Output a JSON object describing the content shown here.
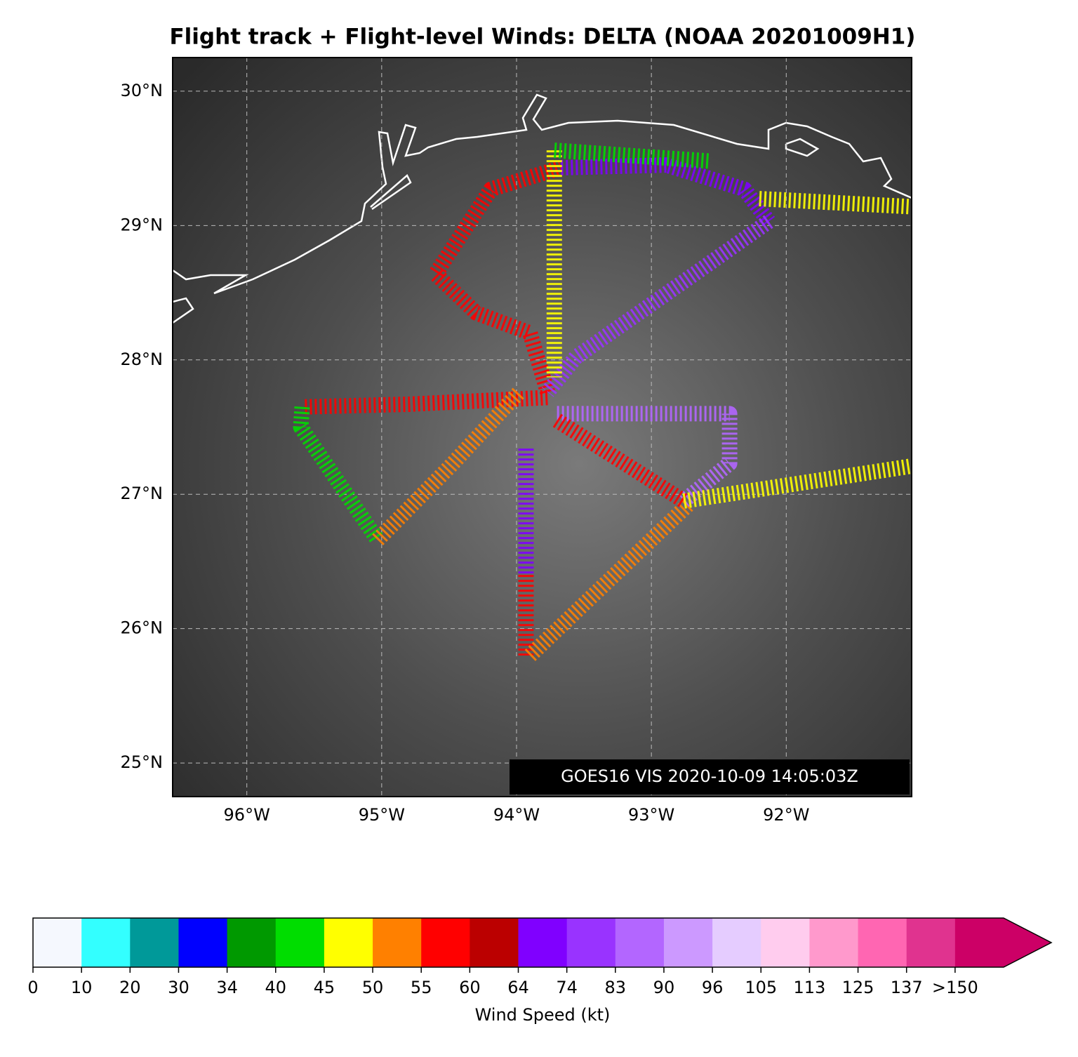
{
  "chart_data": {
    "type": "map",
    "title": "Flight track + Flight-level Winds: DELTA (NOAA 20201009H1)",
    "annotation": "GOES16 VIS 2020-10-09 14:05:03Z",
    "xlim": [
      -96.55,
      -91.07
    ],
    "ylim": [
      24.75,
      30.25
    ],
    "xticks": [
      {
        "value": -96,
        "label": "96°W"
      },
      {
        "value": -95,
        "label": "95°W"
      },
      {
        "value": -94,
        "label": "94°W"
      },
      {
        "value": -93,
        "label": "93°W"
      },
      {
        "value": -92,
        "label": "92°W"
      }
    ],
    "yticks": [
      {
        "value": 25,
        "label": "25°N"
      },
      {
        "value": 26,
        "label": "26°N"
      },
      {
        "value": 27,
        "label": "27°N"
      },
      {
        "value": 28,
        "label": "28°N"
      },
      {
        "value": 29,
        "label": "29°N"
      },
      {
        "value": 30,
        "label": "30°N"
      }
    ],
    "grid": true,
    "track": [
      {
        "color": "#ff0000",
        "lon": [
          -93.77,
          -93.9,
          -94.3,
          -94.6,
          -94.19,
          -93.67
        ],
        "lat": [
          27.76,
          28.2,
          28.35,
          28.64,
          29.27,
          29.43
        ]
      },
      {
        "color": "#8000ff",
        "lon": [
          -93.67,
          -92.89,
          -92.31,
          -92.13
        ],
        "lat": [
          29.43,
          29.45,
          29.27,
          29.03
        ]
      },
      {
        "color": "#9933ff",
        "lon": [
          -92.13,
          -92.68,
          -93.56,
          -93.77
        ],
        "lat": [
          29.03,
          28.64,
          28.02,
          27.76
        ]
      },
      {
        "color": "#ffff00",
        "lon": [
          -93.72,
          -93.72
        ],
        "lat": [
          29.56,
          27.87
        ]
      },
      {
        "color": "#00dd00",
        "lon": [
          -93.72,
          -92.57
        ],
        "lat": [
          29.56,
          29.48
        ]
      },
      {
        "color": "#ffff00",
        "lon": [
          -92.2,
          -91.07
        ],
        "lat": [
          29.2,
          29.14
        ]
      },
      {
        "color": "#ff0000",
        "lon": [
          -93.77,
          -94.8,
          -95.59
        ],
        "lat": [
          27.72,
          27.67,
          27.65
        ]
      },
      {
        "color": "#00dd00",
        "lon": [
          -95.59,
          -95.6,
          -95.03
        ],
        "lat": [
          27.65,
          27.5,
          26.66
        ]
      },
      {
        "color": "#ff8000",
        "lon": [
          -95.03,
          -94.5,
          -93.98
        ],
        "lat": [
          26.66,
          27.2,
          27.76
        ]
      },
      {
        "color": "#8000ff",
        "lon": [
          -93.93,
          -93.93
        ],
        "lat": [
          27.34,
          26.4
        ]
      },
      {
        "color": "#ff0000",
        "lon": [
          -93.93,
          -93.93
        ],
        "lat": [
          26.4,
          25.8
        ]
      },
      {
        "color": "#ff8000",
        "lon": [
          -93.9,
          -92.73
        ],
        "lat": [
          25.8,
          26.92
        ]
      },
      {
        "color": "#b366ff",
        "lon": [
          -93.7,
          -92.42,
          -92.42,
          -92.76
        ],
        "lat": [
          27.6,
          27.6,
          27.23,
          26.95
        ]
      },
      {
        "color": "#ff0000",
        "lon": [
          -93.7,
          -92.76
        ],
        "lat": [
          27.55,
          26.95
        ]
      },
      {
        "color": "#ffff00",
        "lon": [
          -92.76,
          -91.07
        ],
        "lat": [
          26.95,
          27.21
        ]
      }
    ],
    "colorbar": {
      "label": "Wind Speed (kt)",
      "ticks": [
        0,
        10,
        20,
        30,
        34,
        40,
        45,
        50,
        55,
        60,
        64,
        74,
        83,
        90,
        96,
        105,
        113,
        125,
        137,
        {
          "value": 150,
          "label": ">150"
        }
      ],
      "colors": [
        "#f5f8fe",
        "#33ffff",
        "#009999",
        "#0000ff",
        "#009900",
        "#00dd00",
        "#ffff00",
        "#ff8000",
        "#ff0000",
        "#bb0000",
        "#8000ff",
        "#9933ff",
        "#b366ff",
        "#cc99ff",
        "#e5ccff",
        "#ffccee",
        "#ff99cc",
        "#ff66b2",
        "#e0338f",
        "#cc0066"
      ]
    }
  }
}
